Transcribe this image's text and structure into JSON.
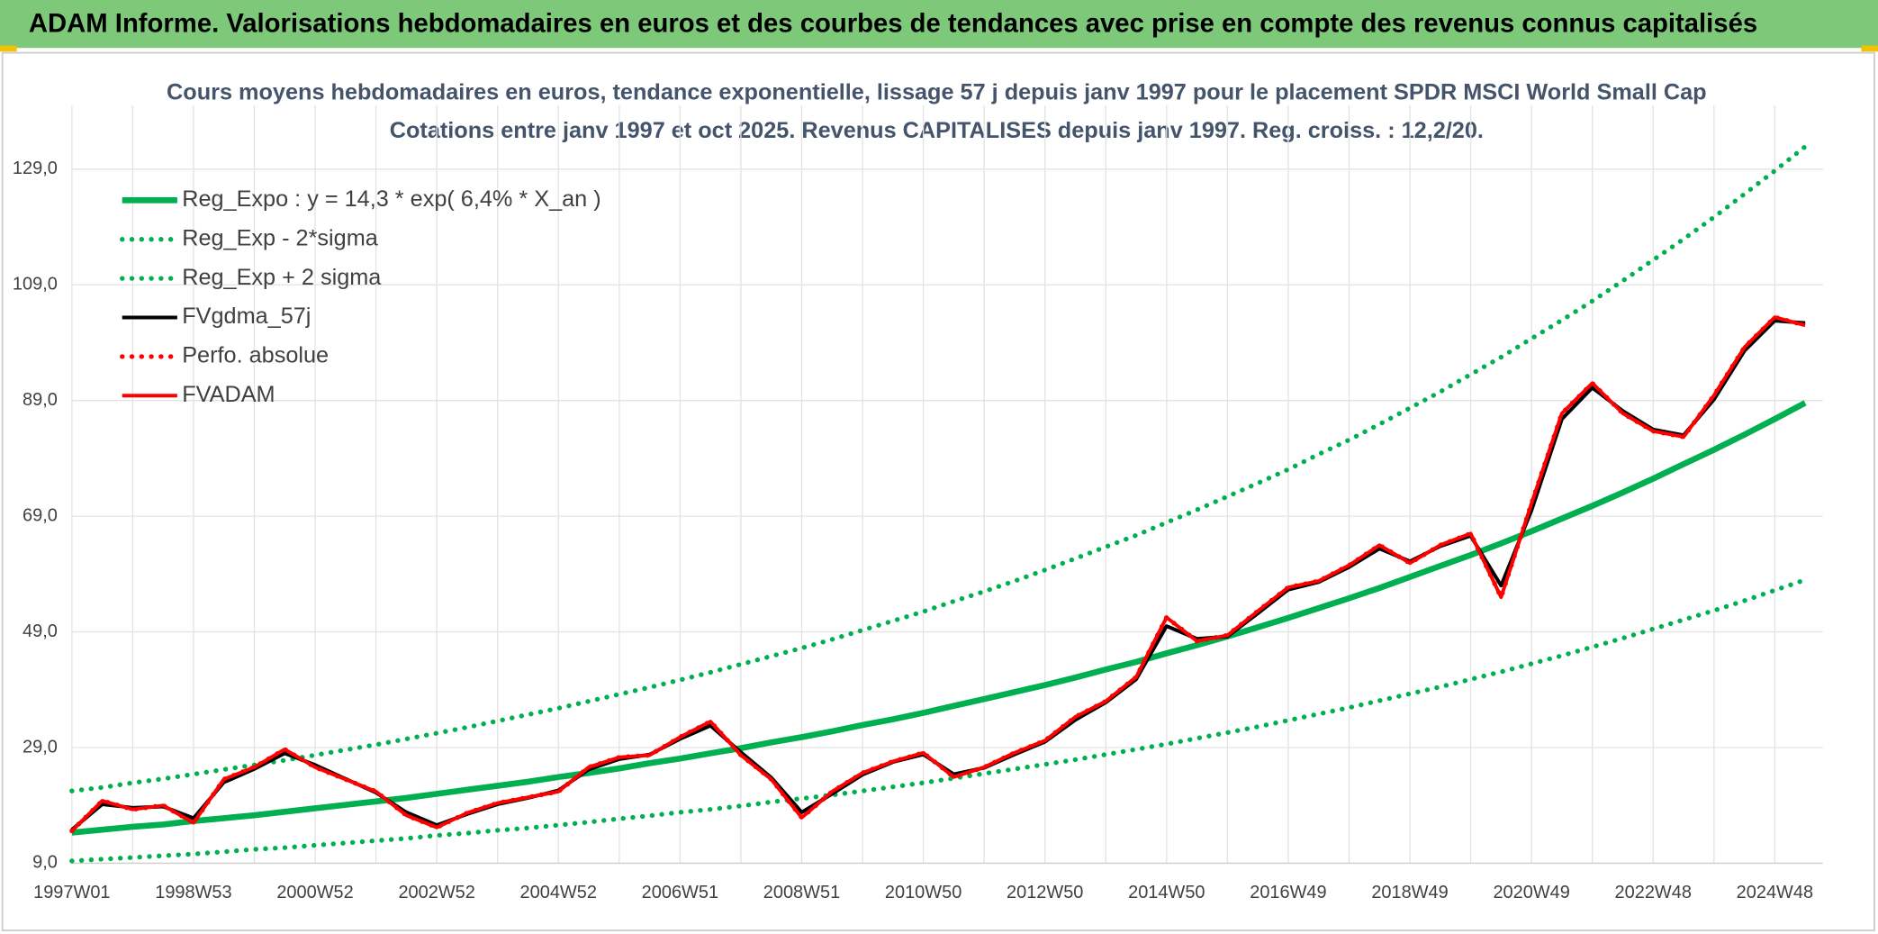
{
  "header": {
    "title": "ADAM Informe. Valorisations hebdomadaires en euros et des courbes de tendances avec prise en compte des revenus connus capitalisés"
  },
  "chart_data": {
    "type": "line",
    "title": "Cours moyens hebdomadaires en euros, tendance exponentielle, lissage 57 j depuis janv 1997 pour le placement SPDR MSCI World Small Cap",
    "subtitle": "Cotations entre janv 1997 et oct 2025. Revenus CAPITALISES depuis janv 1997. Reg. croiss. : 12,2/20.",
    "categories": [
      "1997W01",
      null,
      null,
      null,
      "1998W53",
      null,
      null,
      null,
      "2000W52",
      null,
      null,
      null,
      "2002W52",
      null,
      null,
      null,
      "2004W52",
      null,
      null,
      null,
      "2006W51",
      null,
      null,
      null,
      "2008W51",
      null,
      null,
      null,
      "2010W50",
      null,
      null,
      null,
      "2012W50",
      null,
      null,
      null,
      "2014W50",
      null,
      null,
      null,
      "2016W49",
      null,
      null,
      null,
      "2018W49",
      null,
      null,
      null,
      "2020W49",
      null,
      null,
      null,
      "2022W48",
      null,
      null,
      null,
      "2024W48",
      null
    ],
    "ylim": [
      9,
      140
    ],
    "yticks": [
      {
        "value": 9,
        "label": "9,0"
      },
      {
        "value": 29,
        "label": "29,0"
      },
      {
        "value": 49,
        "label": "49,0"
      },
      {
        "value": 69,
        "label": "69,0"
      },
      {
        "value": 89,
        "label": "89,0"
      },
      {
        "value": 109,
        "label": "109,0"
      },
      {
        "value": 129,
        "label": "129,0"
      }
    ],
    "grid": true,
    "legend": "top-left",
    "series": [
      {
        "name": "Reg_Expo : y = 14,3 * exp( 6,4% *  X_an )",
        "color": "#00b050",
        "style": "solid",
        "values": [
          14.3,
          14.8,
          15.3,
          15.7,
          16.3,
          16.8,
          17.3,
          17.9,
          18.5,
          19.1,
          19.7,
          20.3,
          21.0,
          21.7,
          22.4,
          23.1,
          23.9,
          24.6,
          25.4,
          26.3,
          27.1,
          28.0,
          28.9,
          29.9,
          30.8,
          31.8,
          32.9,
          33.9,
          35.0,
          36.2,
          37.4,
          38.6,
          39.8,
          41.1,
          42.5,
          43.8,
          45.3,
          46.7,
          48.2,
          49.8,
          51.4,
          53.1,
          54.8,
          56.6,
          58.5,
          60.4,
          62.3,
          64.3,
          66.4,
          68.6,
          70.8,
          73.1,
          75.5,
          78.0,
          80.5,
          83.1,
          85.8,
          88.6
        ]
      },
      {
        "name": "Reg_Exp - 2*sigma",
        "color": "#00b050",
        "style": "dotted",
        "values": [
          9.4,
          9.7,
          10.0,
          10.3,
          10.6,
          11.0,
          11.4,
          11.7,
          12.1,
          12.5,
          12.9,
          13.3,
          13.8,
          14.2,
          14.7,
          15.1,
          15.6,
          16.1,
          16.7,
          17.2,
          17.8,
          18.3,
          18.9,
          19.6,
          20.2,
          20.8,
          21.5,
          22.2,
          22.9,
          23.7,
          24.5,
          25.3,
          26.1,
          26.9,
          27.8,
          28.7,
          29.6,
          30.6,
          31.6,
          32.6,
          33.7,
          34.8,
          35.9,
          37.1,
          38.3,
          39.5,
          40.8,
          42.1,
          43.5,
          44.9,
          46.4,
          47.9,
          49.5,
          51.1,
          52.7,
          54.4,
          56.2,
          58.0
        ]
      },
      {
        "name": "Reg_Exp + 2 sigma",
        "color": "#00b050",
        "style": "dotted",
        "values": [
          21.5,
          22.1,
          22.9,
          23.6,
          24.4,
          25.2,
          26.0,
          26.8,
          27.7,
          28.6,
          29.5,
          30.5,
          31.5,
          32.5,
          33.6,
          34.7,
          35.8,
          37.0,
          38.2,
          39.4,
          40.7,
          42.0,
          43.4,
          44.8,
          46.2,
          47.7,
          49.3,
          50.9,
          52.5,
          54.3,
          56.0,
          57.8,
          59.7,
          61.7,
          63.7,
          65.7,
          67.9,
          70.1,
          72.4,
          74.7,
          77.1,
          79.7,
          82.2,
          84.9,
          87.7,
          90.5,
          93.5,
          96.5,
          99.7,
          102.9,
          106.2,
          109.7,
          113.3,
          116.9,
          120.7,
          124.7,
          128.7,
          132.9
        ]
      },
      {
        "name": "FVgdma_57j",
        "color": "#000000",
        "style": "solid",
        "values": [
          14.8,
          19.2,
          18.6,
          18.8,
          16.8,
          23,
          25.3,
          28,
          26,
          23.6,
          21.2,
          17.8,
          15.6,
          17.5,
          19.2,
          20.3,
          21.6,
          25.2,
          27,
          27.8,
          30.5,
          32.8,
          28.2,
          23.8,
          17.8,
          21,
          24.3,
          26.5,
          27.8,
          24.4,
          25.5,
          27.8,
          30,
          33.8,
          36.8,
          40.8,
          50,
          47.8,
          48.2,
          52.2,
          56.3,
          57.6,
          60.2,
          63.4,
          61.2,
          63.8,
          65.6,
          57,
          70,
          85.8,
          91.2,
          87.2,
          84,
          83,
          89.2,
          97.6,
          102.8,
          102.4
        ]
      },
      {
        "name": "Perfo. absolue",
        "color": "#ff0000",
        "style": "dotted",
        "values": [
          14.6,
          19.8,
          18.3,
          19,
          16,
          23.5,
          25.6,
          28.7,
          25.6,
          23.5,
          21.4,
          17.3,
          15.2,
          17.7,
          19.4,
          20.4,
          21.4,
          25.6,
          27.3,
          27.7,
          30.8,
          33.5,
          27.7,
          23.5,
          16.9,
          21.4,
          24.6,
          26.6,
          28.1,
          23.9,
          25.6,
          28.1,
          30.2,
          34.3,
          37,
          41.2,
          51.5,
          47.4,
          48.4,
          52.6,
          56.7,
          57.8,
          60.5,
          64,
          60.9,
          64,
          66,
          55,
          71.2,
          86.8,
          92,
          86.8,
          83.7,
          82.7,
          89.9,
          98.2,
          103.4,
          102
        ]
      },
      {
        "name": "FVADAM",
        "color": "#ff0000",
        "style": "solid",
        "values": [
          14.6,
          19.8,
          18.3,
          19,
          16,
          23.5,
          25.6,
          28.7,
          25.6,
          23.5,
          21.4,
          17.3,
          15.2,
          17.7,
          19.4,
          20.4,
          21.4,
          25.6,
          27.3,
          27.7,
          30.8,
          33.5,
          27.7,
          23.5,
          16.9,
          21.4,
          24.6,
          26.6,
          28.1,
          23.9,
          25.6,
          28.1,
          30.2,
          34.3,
          37,
          41.2,
          51.5,
          47.4,
          48.4,
          52.6,
          56.7,
          57.8,
          60.5,
          64,
          60.9,
          64,
          66,
          55,
          71.2,
          86.8,
          92,
          86.8,
          83.7,
          82.7,
          89.9,
          98.2,
          103.4,
          102
        ]
      }
    ]
  }
}
